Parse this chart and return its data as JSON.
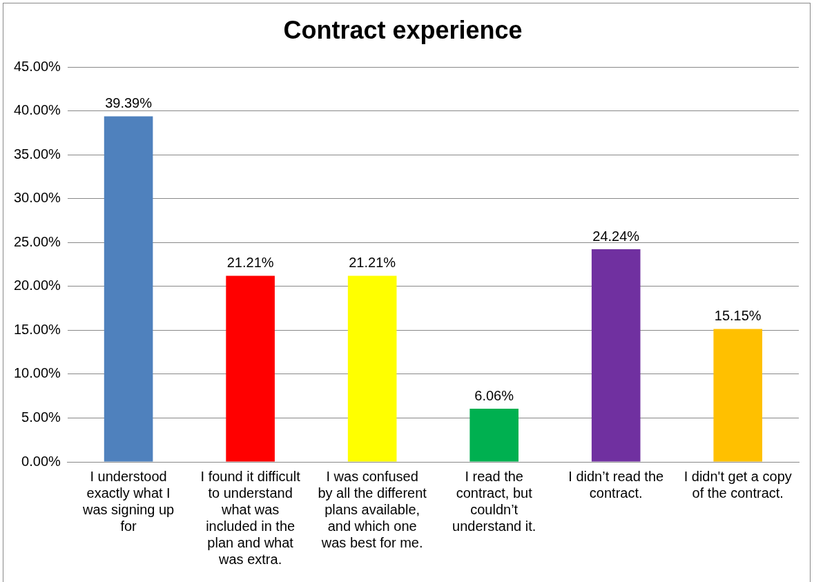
{
  "chart_data": {
    "type": "bar",
    "title": "Contract experience",
    "categories": [
      "I understood exactly what I was signing up for",
      "I found it difficult to understand what was included in the plan and what was extra.",
      "I was confused by all the different plans available, and which one was best for me.",
      "I read the contract, but couldn’t understand it.",
      "I didn’t read the contract.",
      "I didn't get a copy of the contract."
    ],
    "values": [
      39.39,
      21.21,
      21.21,
      6.06,
      24.24,
      15.15
    ],
    "colors": [
      "#4f81bd",
      "#ff0000",
      "#ffff00",
      "#00b050",
      "#7030a0",
      "#ffc000"
    ],
    "value_labels": [
      "39.39%",
      "21.21%",
      "21.21%",
      "6.06%",
      "24.24%",
      "15.15%"
    ],
    "ylim": [
      0,
      45
    ],
    "yticks": [
      {
        "value": 0,
        "label": "0.00%"
      },
      {
        "value": 5,
        "label": "5.00%"
      },
      {
        "value": 10,
        "label": "10.00%"
      },
      {
        "value": 15,
        "label": "15.00%"
      },
      {
        "value": 20,
        "label": "20.00%"
      },
      {
        "value": 25,
        "label": "25.00%"
      },
      {
        "value": 30,
        "label": "30.00%"
      },
      {
        "value": 35,
        "label": "35.00%"
      },
      {
        "value": 40,
        "label": "40.00%"
      },
      {
        "value": 45,
        "label": "45.00%"
      }
    ],
    "grid": "y",
    "legend": false
  }
}
